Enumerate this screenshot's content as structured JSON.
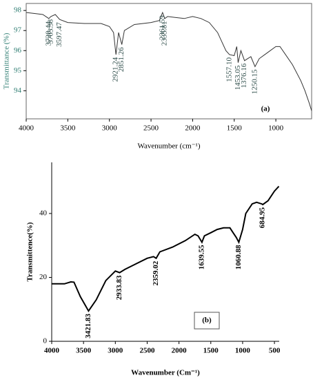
{
  "chart_data": [
    {
      "type": "line",
      "label": "(a)",
      "x_label": "Wavenumber (cm⁻¹)",
      "y_label": "Transmittance (%)",
      "color": "#333333",
      "tick_label_color": "#2e7d72",
      "xlim": [
        4000,
        570
      ],
      "xticks": [
        4000,
        3500,
        3000,
        2500,
        2000,
        1500,
        1000
      ],
      "ylim": [
        92.6,
        98.35
      ],
      "yticks": [
        94,
        95,
        96,
        97,
        98
      ],
      "x": [
        4000,
        3900,
        3800,
        3728,
        3703,
        3650,
        3597,
        3500,
        3300,
        3100,
        3000,
        2950,
        2921,
        2890,
        2851,
        2820,
        2700,
        2500,
        2400,
        2361,
        2335,
        2300,
        2100,
        2000,
        1900,
        1800,
        1700,
        1600,
        1557,
        1500,
        1470,
        1453,
        1420,
        1376,
        1340,
        1300,
        1250,
        1200,
        1100,
        1000,
        950,
        900,
        800,
        700,
        650,
        600,
        570
      ],
      "values": [
        97.9,
        97.85,
        97.8,
        97.6,
        97.7,
        97.8,
        97.55,
        97.4,
        97.35,
        97.35,
        97.2,
        96.9,
        95.8,
        96.9,
        96.3,
        97.0,
        97.3,
        97.4,
        97.5,
        97.9,
        97.6,
        97.7,
        97.6,
        97.7,
        97.6,
        97.4,
        96.9,
        96.0,
        95.8,
        95.75,
        96.2,
        95.4,
        96.0,
        95.5,
        95.6,
        95.7,
        95.2,
        95.6,
        95.9,
        96.2,
        96.2,
        95.9,
        95.3,
        94.5,
        94.0,
        93.4,
        93.0
      ],
      "annotations": [
        {
          "value": 3728.44,
          "label": "3728.44"
        },
        {
          "value": 3703.38,
          "label": "3703.38"
        },
        {
          "value": 3597.47,
          "label": "3597.47"
        },
        {
          "value": 2921.24,
          "label": "2921.24"
        },
        {
          "value": 2851.26,
          "label": "2851.26"
        },
        {
          "value": 2361.59,
          "label": "2361.59"
        },
        {
          "value": 2335.81,
          "label": "2335.81"
        },
        {
          "value": 1557.1,
          "label": "1557.10"
        },
        {
          "value": 1453.05,
          "label": "1453.05"
        },
        {
          "value": 1376.16,
          "label": "1376.16"
        },
        {
          "value": 1250.15,
          "label": "1250.15"
        }
      ]
    },
    {
      "type": "line",
      "label": "(b)",
      "x_label": "Wavenumber (Cm⁻¹)",
      "y_label": "Transmittence(%)",
      "color": "#000000",
      "tick_label_color": "#000000",
      "xlim": [
        4000,
        425
      ],
      "xticks": [
        4000,
        3500,
        3000,
        2500,
        2000,
        1500,
        1000,
        500
      ],
      "ylim": [
        0,
        56
      ],
      "yticks": [
        0,
        20,
        40
      ],
      "x": [
        4000,
        3800,
        3700,
        3650,
        3550,
        3421,
        3300,
        3150,
        3000,
        2933,
        2850,
        2700,
        2500,
        2400,
        2359,
        2300,
        2100,
        1900,
        1750,
        1700,
        1639,
        1600,
        1500,
        1400,
        1300,
        1200,
        1150,
        1100,
        1060,
        1000,
        950,
        850,
        780,
        700,
        684,
        600,
        500,
        430
      ],
      "values": [
        18,
        18,
        18.6,
        18.5,
        14,
        9.5,
        13,
        19,
        22,
        21.5,
        22.5,
        24,
        26,
        26.5,
        26,
        28,
        29.5,
        31.5,
        33.5,
        33,
        31,
        33,
        34,
        35,
        35.5,
        35.5,
        34,
        32.5,
        31,
        35,
        40,
        43,
        43.5,
        43,
        42.8,
        44,
        47,
        48.5
      ],
      "annotations": [
        {
          "value": 3421.83,
          "label": "3421.83"
        },
        {
          "value": 2933.83,
          "label": "2933.83"
        },
        {
          "value": 2359.02,
          "label": "2359.02"
        },
        {
          "value": 1639.55,
          "label": "1639.55"
        },
        {
          "value": 1060.88,
          "label": "1060.88"
        },
        {
          "value": 684.95,
          "label": "684.95"
        }
      ]
    }
  ]
}
